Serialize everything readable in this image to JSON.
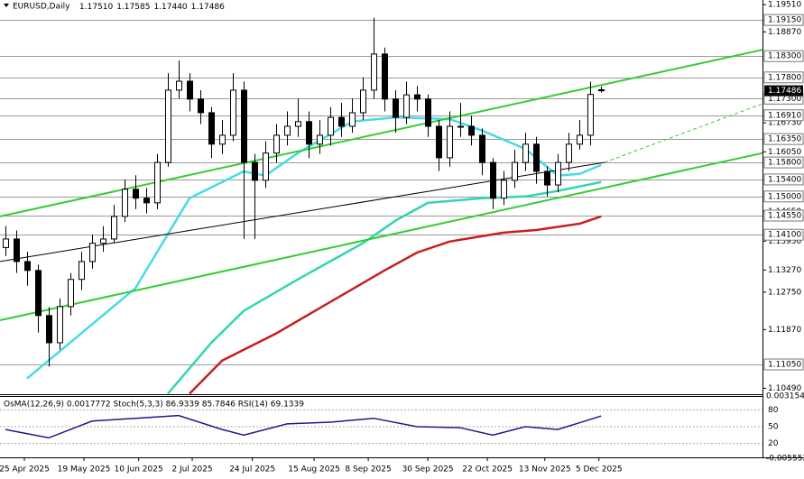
{
  "chart_data": {
    "type": "candlestick",
    "title": "EURUSD,Daily",
    "ohlc_labels": [
      "1.17510",
      "1.17585",
      "1.17440",
      "1.17486"
    ],
    "open": [
      1.138,
      1.14,
      1.1347,
      1.1326,
      1.122,
      1.1156,
      1.1241,
      1.1305,
      1.1347,
      1.139,
      1.14,
      1.1453,
      1.1517,
      1.1496,
      1.1485,
      1.158,
      1.175,
      1.1771,
      1.1729,
      1.1697,
      1.1623,
      1.1644,
      1.175,
      1.158,
      1.1538,
      1.1602,
      1.1644,
      1.1665,
      1.1676,
      1.1623,
      1.1644,
      1.1686,
      1.1665,
      1.1697,
      1.175,
      1.1835,
      1.1729,
      1.1686,
      1.1739,
      1.1729,
      1.1665,
      1.1591,
      1.1665,
      1.1665,
      1.1644,
      1.158,
      1.1496,
      1.1538,
      1.158,
      1.1623,
      1.1559,
      1.1527,
      1.158,
      1.1623,
      1.1644,
      1.1751
    ],
    "high": [
      1.143,
      1.142,
      1.137,
      1.134,
      1.124,
      1.126,
      1.132,
      1.137,
      1.141,
      1.143,
      1.148,
      1.154,
      1.155,
      1.152,
      1.16,
      1.179,
      1.182,
      1.179,
      1.175,
      1.171,
      1.168,
      1.179,
      1.177,
      1.16,
      1.163,
      1.167,
      1.17,
      1.173,
      1.17,
      1.168,
      1.171,
      1.172,
      1.173,
      1.178,
      1.192,
      1.185,
      1.175,
      1.177,
      1.176,
      1.174,
      1.168,
      1.17,
      1.172,
      1.169,
      1.166,
      1.159,
      1.156,
      1.161,
      1.165,
      1.164,
      1.157,
      1.16,
      1.165,
      1.168,
      1.177,
      1.17585
    ],
    "low": [
      1.136,
      1.132,
      1.129,
      1.118,
      1.11,
      1.114,
      1.122,
      1.128,
      1.133,
      1.137,
      1.139,
      1.144,
      1.147,
      1.146,
      1.147,
      1.157,
      1.173,
      1.17,
      1.167,
      1.159,
      1.16,
      1.163,
      1.14,
      1.14,
      1.152,
      1.158,
      1.162,
      1.164,
      1.159,
      1.16,
      1.162,
      1.164,
      1.165,
      1.168,
      1.173,
      1.17,
      1.165,
      1.167,
      1.17,
      1.164,
      1.156,
      1.157,
      1.164,
      1.162,
      1.155,
      1.147,
      1.148,
      1.152,
      1.156,
      1.153,
      1.15,
      1.151,
      1.156,
      1.161,
      1.162,
      1.1744
    ],
    "close": [
      1.14,
      1.1347,
      1.1326,
      1.122,
      1.1156,
      1.1241,
      1.1305,
      1.1347,
      1.139,
      1.14,
      1.1453,
      1.1517,
      1.1496,
      1.1485,
      1.158,
      1.175,
      1.1771,
      1.1729,
      1.1697,
      1.1623,
      1.1644,
      1.175,
      1.158,
      1.1538,
      1.1602,
      1.1644,
      1.1665,
      1.1676,
      1.1623,
      1.1644,
      1.1686,
      1.1665,
      1.1697,
      1.175,
      1.1835,
      1.1729,
      1.1686,
      1.1739,
      1.1729,
      1.1665,
      1.1591,
      1.1665,
      1.1665,
      1.1644,
      1.158,
      1.1496,
      1.1538,
      1.158,
      1.1623,
      1.1559,
      1.1527,
      1.158,
      1.1623,
      1.1644,
      1.174,
      1.17486
    ],
    "series": [
      {
        "color": "#46dbe6",
        "x": [
          2,
          7,
          12,
          17,
          22,
          24,
          27,
          32,
          36,
          41,
          44,
          48,
          51,
          53,
          55
        ],
        "values": [
          1.1072,
          1.1178,
          1.1284,
          1.1496,
          1.1559,
          1.1549,
          1.1602,
          1.1676,
          1.1686,
          1.1682,
          1.1655,
          1.1612,
          1.1549,
          1.1553,
          1.1574
        ]
      },
      {
        "color": "#2fd6b0",
        "x": [
          15,
          19,
          22,
          27,
          33,
          36,
          39,
          44,
          48,
          51,
          55
        ],
        "values": [
          1.1036,
          1.1156,
          1.1231,
          1.1305,
          1.139,
          1.1443,
          1.1485,
          1.1496,
          1.15,
          1.1513,
          1.1534
        ]
      },
      {
        "color": "#c81e1e",
        "x": [
          17,
          20,
          25,
          30,
          35,
          38,
          41,
          46,
          49,
          53,
          55
        ],
        "values": [
          1.1036,
          1.1114,
          1.1178,
          1.1252,
          1.1326,
          1.1368,
          1.1394,
          1.1415,
          1.1421,
          1.1436,
          1.1453
        ]
      },
      {
        "color": "#33cc33",
        "x": [
          -0.5,
          69.9
        ],
        "values": [
          1.1453,
          1.1845
        ]
      },
      {
        "color": "#33cc33",
        "x": [
          -0.5,
          69.9
        ],
        "values": [
          1.1209,
          1.1602
        ]
      },
      {
        "color": "#000000",
        "x": [
          -0.5,
          55.3
        ],
        "values": [
          1.1347,
          1.158
        ]
      },
      {
        "color": "#33cc33",
        "dashed": true,
        "x": [
          55.3,
          69.9
        ],
        "values": [
          1.158,
          1.1718
        ]
      }
    ],
    "xlim": [
      -0.5,
      69.9
    ],
    "ylim": [
      1.1035,
      1.1962
    ],
    "xticks": [
      {
        "value": 1.75,
        "label": "25 Apr 2025"
      },
      {
        "value": 7.25,
        "label": "19 May 2025"
      },
      {
        "value": 12.3,
        "label": "10 Jun 2025"
      },
      {
        "value": 17.25,
        "label": "2 Jul 2025"
      },
      {
        "value": 22.8,
        "label": "24 Jul 2025"
      },
      {
        "value": 28.5,
        "label": "15 Aug 2025"
      },
      {
        "value": 33.5,
        "label": "8 Sep 2025"
      },
      {
        "value": 39,
        "label": "30 Sep 2025"
      },
      {
        "value": 44.5,
        "label": "22 Oct 2025"
      },
      {
        "value": 49.8,
        "label": "13 Nov 2025"
      },
      {
        "value": 54.8,
        "label": "5 Dec 2025"
      }
    ],
    "yticks": [
      {
        "value": 1.1951,
        "label": "1.19510"
      },
      {
        "value": 1.1887,
        "label": "1.18870"
      },
      {
        "value": 1.1673,
        "label": "1.16730"
      },
      {
        "value": 1.1605,
        "label": "1.16050"
      },
      {
        "value": 1.1465,
        "label": "1.14650"
      },
      {
        "value": 1.1395,
        "label": "1.13950"
      },
      {
        "value": 1.1327,
        "label": "1.13270"
      },
      {
        "value": 1.1275,
        "label": "1.12750"
      },
      {
        "value": 1.1187,
        "label": "1.11870"
      },
      {
        "value": 1.1049,
        "label": "1.10490"
      }
    ],
    "levels": [
      {
        "value": 1.1915,
        "label": "1.19150"
      },
      {
        "value": 1.183,
        "label": "1.18300"
      },
      {
        "value": 1.178,
        "label": "1.17800"
      },
      {
        "value": 1.173,
        "label": "1.17300"
      },
      {
        "value": 1.1691,
        "label": "1.16910"
      },
      {
        "value": 1.1635,
        "label": "1.16350"
      },
      {
        "value": 1.158,
        "label": "1.15800"
      },
      {
        "value": 1.154,
        "label": "1.15400"
      },
      {
        "value": 1.15,
        "label": "1.15000"
      },
      {
        "value": 1.1455,
        "label": "1.14550"
      },
      {
        "value": 1.141,
        "label": "1.14100"
      },
      {
        "value": 1.1105,
        "label": "1.11050"
      }
    ],
    "current_price": {
      "value": 1.17486,
      "label": "1.17486"
    },
    "indicator": {
      "title": "OsMA(12,26,9) 0.0017772 Stoch(5,3,3) 86.9339 85.7846 RSI(14) 69.1339",
      "color": "#1a1a8c",
      "x": [
        0,
        4,
        8,
        12,
        16,
        20,
        22,
        26,
        30,
        34,
        38,
        42,
        45,
        48,
        51,
        55
      ],
      "values": [
        45,
        30,
        60,
        65,
        70,
        45,
        35,
        55,
        58,
        65,
        50,
        48,
        35,
        50,
        45,
        69
      ],
      "ylim": [
        0,
        100
      ],
      "yticks": [
        20,
        50,
        80
      ],
      "osma_ylim": [
        -0.005552,
        0.003154
      ]
    }
  }
}
